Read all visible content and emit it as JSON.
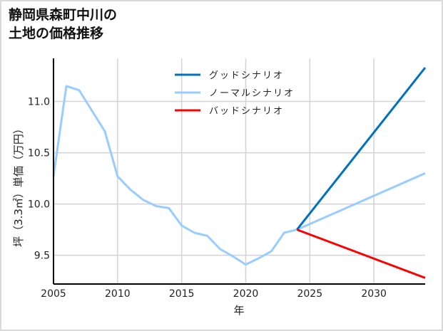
{
  "chart_data": {
    "type": "line",
    "title": "静岡県森町中川の土地の価格推移",
    "title_lines": [
      "静岡県森町中川の",
      "土地の価格推移"
    ],
    "xlabel": "年",
    "ylabel": "坪（3.3㎡）単価（万円）",
    "xlim": [
      2005,
      2034
    ],
    "ylim": [
      9.22,
      11.42
    ],
    "x_ticks": [
      "2005",
      "2010",
      "2015",
      "2020",
      "2025",
      "2030"
    ],
    "y_ticks": [
      "9.5",
      "10.0",
      "10.5",
      "11.0"
    ],
    "grid": true,
    "legend_position": "upper center",
    "series": [
      {
        "name": "グッドシナリオ",
        "color": "#0070C0",
        "x": [
          2024,
          2034
        ],
        "values": [
          9.75,
          11.33
        ]
      },
      {
        "name": "ノーマルシナリオ",
        "color": "#99CCFF",
        "x": [
          2005,
          2006,
          2007,
          2008,
          2009,
          2010,
          2011,
          2012,
          2013,
          2014,
          2015,
          2016,
          2017,
          2018,
          2019,
          2020,
          2021,
          2022,
          2023,
          2024,
          2034
        ],
        "values": [
          10.27,
          11.15,
          11.11,
          10.91,
          10.71,
          10.27,
          10.14,
          10.04,
          9.98,
          9.96,
          9.79,
          9.72,
          9.69,
          9.56,
          9.49,
          9.41,
          9.47,
          9.54,
          9.72,
          9.75,
          10.3
        ]
      },
      {
        "name": "バッドシナリオ",
        "color": "#FF0000",
        "x": [
          2024,
          2034
        ],
        "values": [
          9.75,
          9.28
        ]
      }
    ]
  }
}
